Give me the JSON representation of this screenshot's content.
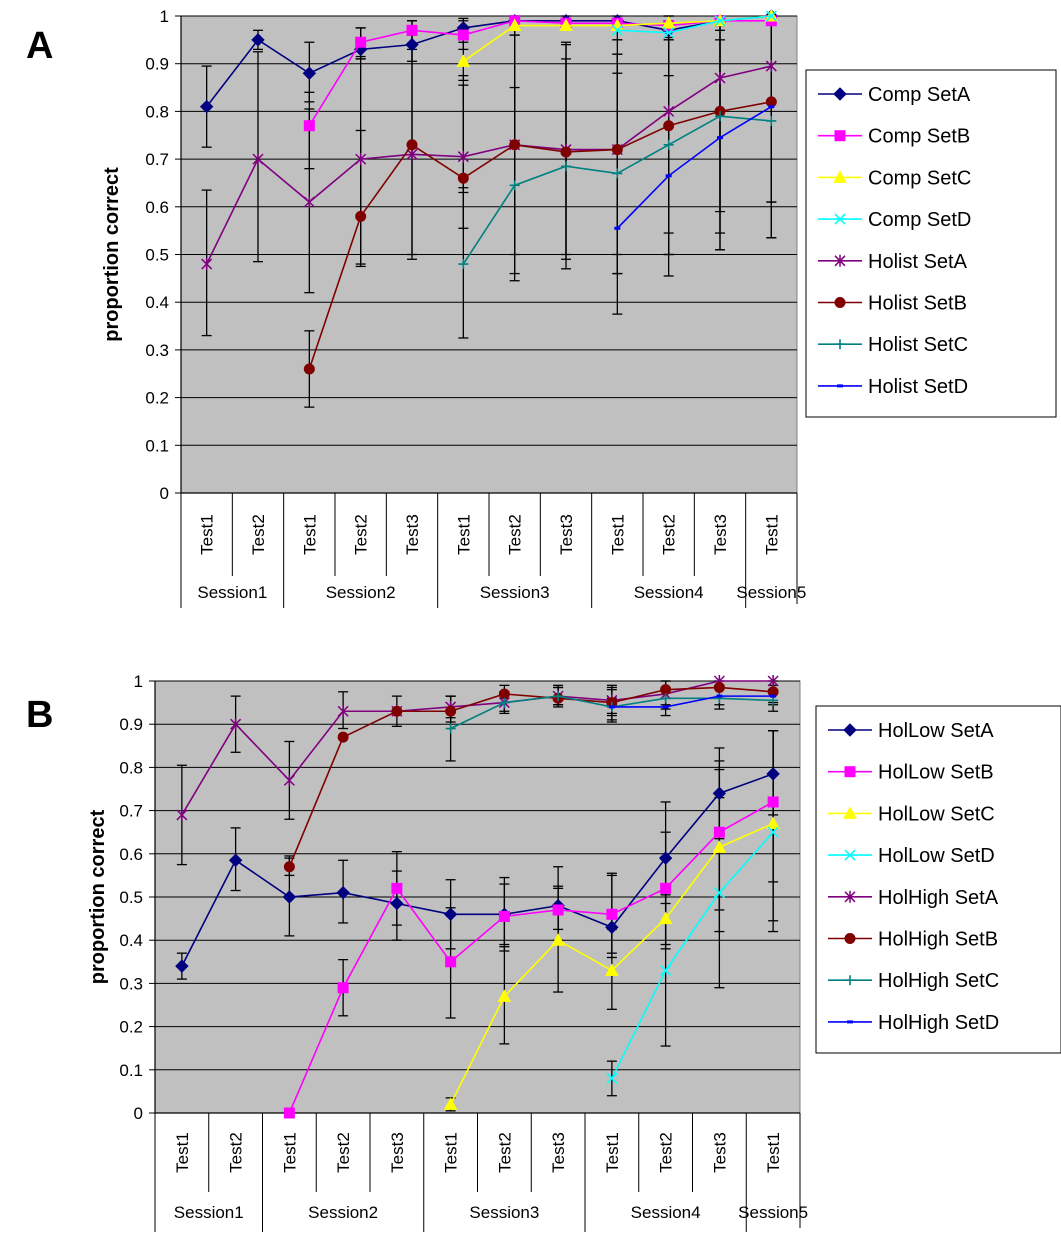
{
  "chart_data": [
    {
      "panel_label": "A",
      "type": "line",
      "ylabel": "proportion correct",
      "ylim": [
        0,
        1
      ],
      "yticks": [
        "0",
        "0.1",
        "0.2",
        "0.3",
        "0.4",
        "0.5",
        "0.6",
        "0.7",
        "0.8",
        "0.9",
        "1"
      ],
      "categories": [
        "Test1",
        "Test2",
        "Test1",
        "Test2",
        "Test3",
        "Test1",
        "Test2",
        "Test3",
        "Test1",
        "Test2",
        "Test3",
        "Test1"
      ],
      "sessions": [
        {
          "label": "Session1",
          "span": [
            0,
            1
          ]
        },
        {
          "label": "Session2",
          "span": [
            2,
            4
          ]
        },
        {
          "label": "Session3",
          "span": [
            5,
            7
          ]
        },
        {
          "label": "Session4",
          "span": [
            8,
            10
          ]
        },
        {
          "label": "Session5",
          "span": [
            11,
            11
          ]
        }
      ],
      "grid": true,
      "plot_background": "#c0c0c0",
      "legend_position": "right",
      "series": [
        {
          "name": "Comp SetA",
          "color": "#000080",
          "marker": "diamond",
          "values": [
            0.81,
            0.95,
            0.88,
            0.93,
            0.94,
            0.975,
            0.99,
            0.99,
            0.99,
            0.97,
            0.99,
            1.0
          ],
          "err": [
            [
              0.725,
              0.895
            ],
            [
              0.93,
              0.97
            ],
            [
              0.82,
              0.945
            ],
            [
              0.91,
              0.975
            ],
            [
              0.905,
              0.99
            ],
            [
              0.95,
              0.995
            ],
            [
              0.97,
              1.0
            ],
            [
              0.97,
              1.0
            ],
            [
              0.97,
              1.0
            ],
            [
              0.95,
              1.0
            ],
            [
              0.97,
              1.0
            ],
            null
          ]
        },
        {
          "name": "Comp SetB",
          "color": "#ff00ff",
          "marker": "square",
          "values": [
            null,
            null,
            0.77,
            0.945,
            0.97,
            0.96,
            0.99,
            0.985,
            0.985,
            0.98,
            0.99,
            0.99
          ],
          "err": [
            null,
            null,
            [
              0.68,
              0.84
            ],
            [
              0.91,
              0.975
            ],
            [
              0.94,
              0.99
            ],
            [
              0.93,
              0.99
            ],
            null,
            null,
            null,
            null,
            null,
            null
          ]
        },
        {
          "name": "Comp SetC",
          "color": "#ffff00",
          "marker": "triangle",
          "values": [
            null,
            null,
            null,
            null,
            null,
            0.905,
            0.98,
            0.98,
            0.98,
            0.985,
            0.99,
            1.0
          ],
          "err": [
            null,
            null,
            null,
            null,
            null,
            [
              0.865,
              0.945
            ],
            [
              0.96,
              1.0
            ],
            null,
            null,
            null,
            null,
            null
          ]
        },
        {
          "name": "Comp SetD",
          "color": "#00ffff",
          "marker": "x",
          "values": [
            null,
            null,
            null,
            null,
            null,
            null,
            null,
            null,
            0.97,
            0.965,
            0.99,
            1.0
          ],
          "err": [
            null,
            null,
            null,
            null,
            null,
            null,
            null,
            null,
            [
              0.95,
              0.99
            ],
            [
              0.95,
              0.985
            ],
            null,
            null
          ]
        },
        {
          "name": "Holist SetA",
          "color": "#800080",
          "marker": "star",
          "values": [
            0.48,
            0.7,
            0.61,
            0.7,
            0.71,
            0.705,
            0.73,
            0.72,
            0.72,
            0.8,
            0.87,
            0.895
          ],
          "err": [
            [
              0.33,
              0.635
            ],
            [
              0.485,
              0.925
            ],
            [
              0.42,
              0.805
            ],
            [
              0.48,
              0.915
            ],
            [
              0.49,
              0.93
            ],
            [
              0.555,
              0.855
            ],
            [
              0.5,
              0.96
            ],
            [
              0.5,
              0.945
            ],
            [
              0.5,
              0.95
            ],
            [
              0.5,
              1.0
            ],
            [
              0.545,
              1.0
            ],
            [
              0.535,
              1.0
            ]
          ]
        },
        {
          "name": "Holist SetB",
          "color": "#800000",
          "marker": "circle",
          "values": [
            null,
            null,
            0.26,
            0.58,
            0.73,
            0.66,
            0.73,
            0.715,
            0.72,
            0.77,
            0.8,
            0.82
          ],
          "err": [
            null,
            null,
            [
              0.18,
              0.34
            ],
            [
              0.475,
              0.76
            ],
            [
              0.5,
              0.96
            ],
            [
              0.63,
              0.875
            ],
            [
              0.46,
              0.85
            ],
            [
              0.49,
              0.94
            ],
            [
              0.46,
              0.92
            ],
            [
              0.455,
              0.875
            ],
            [
              0.51,
              0.95
            ],
            [
              0.535,
              1.0
            ]
          ]
        },
        {
          "name": "Holist SetC",
          "color": "#008080",
          "marker": "plus",
          "values": [
            null,
            null,
            null,
            null,
            null,
            0.48,
            0.645,
            0.685,
            0.67,
            0.73,
            0.79,
            0.78
          ],
          "err": [
            null,
            null,
            null,
            null,
            null,
            [
              0.325,
              0.64
            ],
            [
              0.445,
              0.98
            ],
            [
              0.47,
              0.91
            ],
            [
              0.375,
              0.88
            ],
            [
              0.5,
              0.955
            ],
            [
              0.59,
              0.98
            ],
            [
              0.61,
              1.0
            ]
          ]
        },
        {
          "name": "Holist SetD",
          "color": "#0000ff",
          "marker": "dash",
          "values": [
            null,
            null,
            null,
            null,
            null,
            null,
            null,
            null,
            0.555,
            0.665,
            0.745,
            0.81
          ],
          "err": [
            null,
            null,
            null,
            null,
            null,
            null,
            null,
            null,
            [
              0.46,
              0.92
            ],
            [
              0.545,
              0.99
            ],
            [
              0.51,
              0.98
            ],
            [
              0.61,
              1.0
            ]
          ]
        }
      ]
    },
    {
      "panel_label": "B",
      "type": "line",
      "ylabel": "proportion correct",
      "ylim": [
        0,
        1
      ],
      "yticks": [
        "0",
        "0.1",
        "0.2",
        "0.3",
        "0.4",
        "0.5",
        "0.6",
        "0.7",
        "0.8",
        "0.9",
        "1"
      ],
      "categories": [
        "Test1",
        "Test2",
        "Test1",
        "Test2",
        "Test3",
        "Test1",
        "Test2",
        "Test3",
        "Test1",
        "Test2",
        "Test3",
        "Test1"
      ],
      "sessions": [
        {
          "label": "Session1",
          "span": [
            0,
            1
          ]
        },
        {
          "label": "Session2",
          "span": [
            2,
            4
          ]
        },
        {
          "label": "Session3",
          "span": [
            5,
            7
          ]
        },
        {
          "label": "Session4",
          "span": [
            8,
            10
          ]
        },
        {
          "label": "Session5",
          "span": [
            11,
            11
          ]
        }
      ],
      "grid": true,
      "plot_background": "#c0c0c0",
      "legend_position": "right",
      "series": [
        {
          "name": "HolLow SetA",
          "color": "#000080",
          "marker": "diamond",
          "values": [
            0.34,
            0.585,
            0.5,
            0.51,
            0.485,
            0.46,
            0.46,
            0.48,
            0.43,
            0.59,
            0.74,
            0.785
          ],
          "err": [
            [
              0.31,
              0.37
            ],
            [
              0.515,
              0.66
            ],
            [
              0.41,
              0.59
            ],
            [
              0.44,
              0.585
            ],
            [
              0.4,
              0.56
            ],
            [
              0.38,
              0.54
            ],
            [
              0.375,
              0.545
            ],
            [
              0.4,
              0.57
            ],
            [
              0.36,
              0.55
            ],
            [
              0.485,
              0.72
            ],
            [
              0.635,
              0.845
            ],
            [
              0.69,
              0.885
            ]
          ]
        },
        {
          "name": "HolLow SetB",
          "color": "#ff00ff",
          "marker": "square",
          "values": [
            null,
            null,
            0.0,
            0.29,
            0.52,
            0.35,
            0.455,
            0.47,
            0.46,
            0.52,
            0.65,
            0.72
          ],
          "err": [
            null,
            null,
            null,
            [
              0.225,
              0.355
            ],
            [
              0.435,
              0.605
            ],
            [
              0.22,
              0.475
            ],
            [
              0.39,
              0.53
            ],
            [
              0.425,
              0.52
            ],
            [
              0.37,
              0.555
            ],
            [
              0.38,
              0.65
            ],
            [
              0.47,
              0.815
            ],
            [
              0.535,
              0.885
            ]
          ]
        },
        {
          "name": "HolLow SetC",
          "color": "#ffff00",
          "marker": "triangle",
          "values": [
            null,
            null,
            null,
            null,
            null,
            0.02,
            0.27,
            0.4,
            0.33,
            0.45,
            0.615,
            0.67
          ],
          "err": [
            null,
            null,
            null,
            null,
            null,
            [
              0.005,
              0.035
            ],
            [
              0.16,
              0.385
            ],
            [
              0.28,
              0.525
            ],
            [
              0.24,
              0.425
            ],
            [
              0.39,
              0.51
            ],
            [
              0.42,
              0.795
            ],
            [
              0.445,
              0.885
            ]
          ]
        },
        {
          "name": "HolLow SetD",
          "color": "#00ffff",
          "marker": "x",
          "values": [
            null,
            null,
            null,
            null,
            null,
            null,
            null,
            null,
            0.08,
            0.33,
            0.51,
            0.65
          ],
          "err": [
            null,
            null,
            null,
            null,
            null,
            null,
            null,
            null,
            [
              0.04,
              0.12
            ],
            [
              0.155,
              0.505
            ],
            [
              0.29,
              0.73
            ],
            [
              0.42,
              0.885
            ]
          ]
        },
        {
          "name": "HolHigh SetA",
          "color": "#800080",
          "marker": "star",
          "values": [
            0.69,
            0.9,
            0.77,
            0.93,
            0.93,
            0.94,
            0.95,
            0.965,
            0.955,
            0.97,
            1.0,
            1.0
          ],
          "err": [
            [
              0.575,
              0.805
            ],
            [
              0.835,
              0.965
            ],
            [
              0.68,
              0.86
            ],
            [
              0.89,
              0.975
            ],
            [
              0.895,
              0.965
            ],
            [
              0.915,
              0.965
            ],
            [
              0.925,
              0.975
            ],
            [
              0.94,
              0.99
            ],
            [
              0.925,
              0.985
            ],
            [
              0.945,
              1.0
            ],
            null,
            null
          ]
        },
        {
          "name": "HolHigh SetB",
          "color": "#800000",
          "marker": "circle",
          "values": [
            null,
            null,
            0.57,
            0.87,
            0.93,
            0.93,
            0.97,
            0.96,
            0.95,
            0.98,
            0.985,
            0.975
          ],
          "err": [
            null,
            null,
            [
              0.55,
              0.595
            ],
            null,
            null,
            [
              0.905,
              0.965
            ],
            [
              0.95,
              0.99
            ],
            [
              0.945,
              0.985
            ],
            [
              0.91,
              0.99
            ],
            [
              0.96,
              1.0
            ],
            [
              0.96,
              1.0
            ],
            [
              0.95,
              1.0
            ]
          ]
        },
        {
          "name": "HolHigh SetC",
          "color": "#008080",
          "marker": "plus",
          "values": [
            null,
            null,
            null,
            null,
            null,
            0.89,
            0.95,
            0.965,
            0.94,
            0.96,
            0.96,
            0.955
          ],
          "err": [
            null,
            null,
            null,
            null,
            null,
            [
              0.815,
              0.965
            ],
            [
              0.93,
              0.975
            ],
            [
              0.945,
              0.985
            ],
            [
              0.905,
              0.98
            ],
            [
              0.935,
              0.985
            ],
            [
              0.935,
              0.985
            ],
            [
              0.93,
              0.98
            ]
          ]
        },
        {
          "name": "HolHigh SetD",
          "color": "#0000ff",
          "marker": "dash",
          "values": [
            null,
            null,
            null,
            null,
            null,
            null,
            null,
            null,
            0.94,
            0.94,
            0.965,
            0.965
          ],
          "err": [
            null,
            null,
            null,
            null,
            null,
            null,
            null,
            null,
            [
              0.92,
              0.96
            ],
            [
              0.92,
              0.96
            ],
            [
              0.945,
              0.99
            ],
            [
              0.945,
              0.99
            ]
          ]
        }
      ]
    }
  ]
}
